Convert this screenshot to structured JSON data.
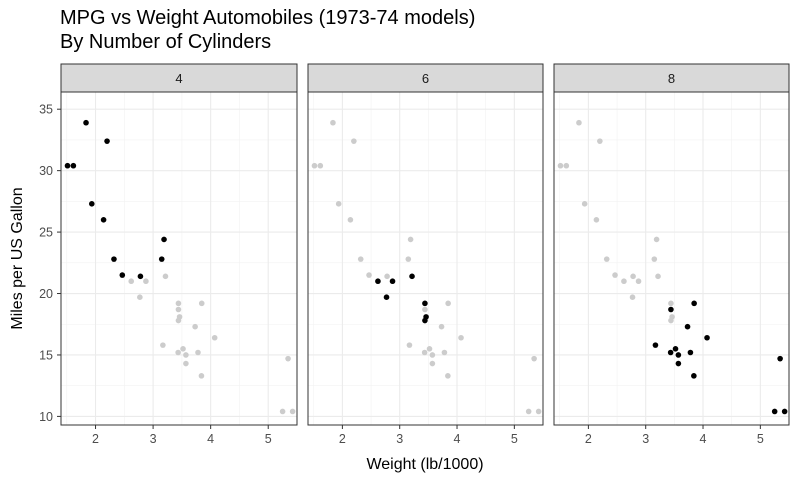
{
  "chart_data": {
    "type": "scatter",
    "title": "MPG vs Weight Automobiles (1973-74 models)\nBy Number of Cylinders",
    "xlabel": "Weight (lb/1000)",
    "ylabel": "Miles per US Gallon",
    "facets": [
      "4",
      "6",
      "8"
    ],
    "xlim": [
      1.4,
      5.5
    ],
    "ylim": [
      9.3,
      36.4
    ],
    "x_ticks": [
      2,
      3,
      4,
      5
    ],
    "y_ticks": [
      10,
      15,
      20,
      25,
      30,
      35
    ],
    "grid": true,
    "colors": {
      "highlight": "#000000",
      "background_points": "#cccccc",
      "strip_fill": "#d9d9d9",
      "grid": "#ebebeb"
    },
    "points": [
      {
        "wt": 2.62,
        "mpg": 21.0,
        "cyl": "6"
      },
      {
        "wt": 2.875,
        "mpg": 21.0,
        "cyl": "6"
      },
      {
        "wt": 2.32,
        "mpg": 22.8,
        "cyl": "4"
      },
      {
        "wt": 3.215,
        "mpg": 21.4,
        "cyl": "6"
      },
      {
        "wt": 3.44,
        "mpg": 18.7,
        "cyl": "8"
      },
      {
        "wt": 3.46,
        "mpg": 18.1,
        "cyl": "6"
      },
      {
        "wt": 3.57,
        "mpg": 14.3,
        "cyl": "8"
      },
      {
        "wt": 3.19,
        "mpg": 24.4,
        "cyl": "4"
      },
      {
        "wt": 3.15,
        "mpg": 22.8,
        "cyl": "4"
      },
      {
        "wt": 3.44,
        "mpg": 19.2,
        "cyl": "6"
      },
      {
        "wt": 3.44,
        "mpg": 17.8,
        "cyl": "6"
      },
      {
        "wt": 4.07,
        "mpg": 16.4,
        "cyl": "8"
      },
      {
        "wt": 3.73,
        "mpg": 17.3,
        "cyl": "8"
      },
      {
        "wt": 3.78,
        "mpg": 15.2,
        "cyl": "8"
      },
      {
        "wt": 5.25,
        "mpg": 10.4,
        "cyl": "8"
      },
      {
        "wt": 5.424,
        "mpg": 10.4,
        "cyl": "8"
      },
      {
        "wt": 5.345,
        "mpg": 14.7,
        "cyl": "8"
      },
      {
        "wt": 2.2,
        "mpg": 32.4,
        "cyl": "4"
      },
      {
        "wt": 1.615,
        "mpg": 30.4,
        "cyl": "4"
      },
      {
        "wt": 1.835,
        "mpg": 33.9,
        "cyl": "4"
      },
      {
        "wt": 2.465,
        "mpg": 21.5,
        "cyl": "4"
      },
      {
        "wt": 3.52,
        "mpg": 15.5,
        "cyl": "8"
      },
      {
        "wt": 3.435,
        "mpg": 15.2,
        "cyl": "8"
      },
      {
        "wt": 3.84,
        "mpg": 13.3,
        "cyl": "8"
      },
      {
        "wt": 3.845,
        "mpg": 19.2,
        "cyl": "8"
      },
      {
        "wt": 1.935,
        "mpg": 27.3,
        "cyl": "4"
      },
      {
        "wt": 2.14,
        "mpg": 26.0,
        "cyl": "4"
      },
      {
        "wt": 1.513,
        "mpg": 30.4,
        "cyl": "4"
      },
      {
        "wt": 3.17,
        "mpg": 15.8,
        "cyl": "8"
      },
      {
        "wt": 2.77,
        "mpg": 19.7,
        "cyl": "6"
      },
      {
        "wt": 3.57,
        "mpg": 15.0,
        "cyl": "8"
      },
      {
        "wt": 2.78,
        "mpg": 21.4,
        "cyl": "4"
      }
    ]
  }
}
